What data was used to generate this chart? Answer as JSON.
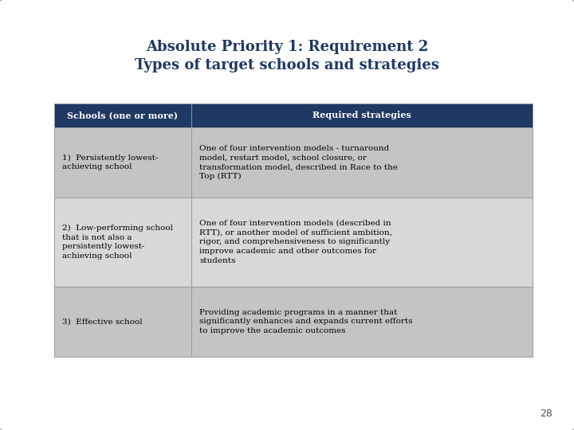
{
  "title_line1": "Absolute Priority 1: Requirement 2",
  "title_line2": "Types of target schools and strategies",
  "header_col1": "Schools (one or more)",
  "header_col2": "Required strategies",
  "header_bg": "#1F3864",
  "header_text_color": "#FFFFFF",
  "row_bg_odd": "#C4C4C4",
  "row_bg_even": "#D8D8D8",
  "slide_bg": "#FFFFFF",
  "border_color": "#999999",
  "title_color": "#1F3864",
  "page_number": "28",
  "col1_texts": [
    "1)  Persistently lowest-\nachieving school",
    "2)  Low-performing school\nthat is not also a\npersistently lowest-\nachieving school",
    "3)  Effective school"
  ],
  "col2_texts": [
    "One of four intervention models - turnaround\nmodel, restart model, school closure, or\ntransformation model, described in Race to the\nTop (RTT)",
    "One of four intervention models (described in\nRTT), or another model of sufficient ambition,\nrigor, and comprehensiveness to significantly\nimprove academic and other outcomes for\nstudents",
    "Providing academic programs in a manner that\nsignificantly enhances and expands current efforts\nto improve the academic outcomes"
  ]
}
